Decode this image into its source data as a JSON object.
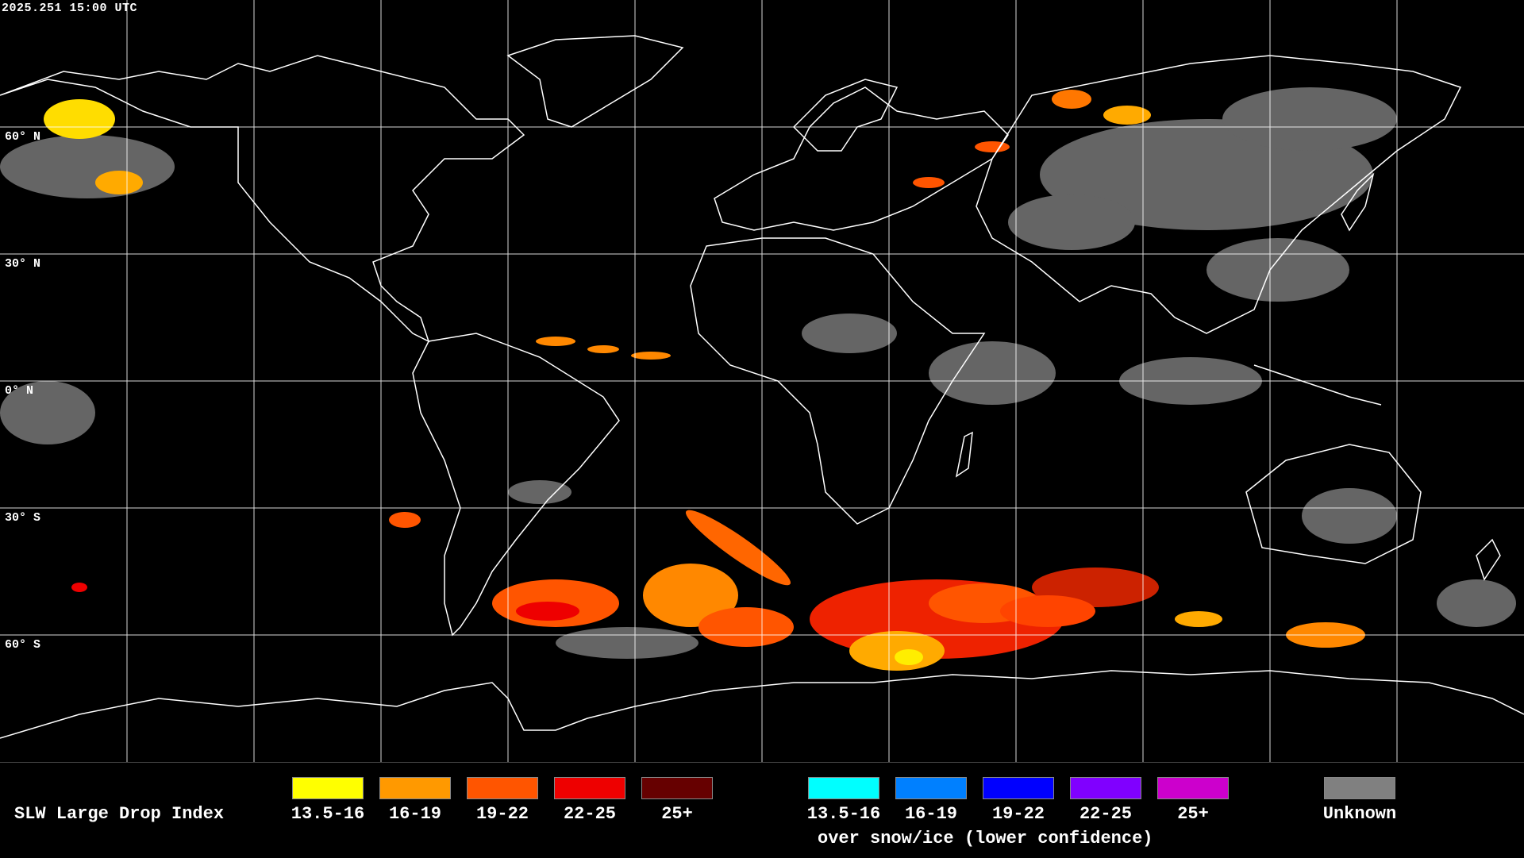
{
  "timestamp": "2025.251 15:00 UTC",
  "lat_labels": [
    "60° N",
    "30° N",
    "0° N",
    "30° S",
    "60° S"
  ],
  "legend": {
    "title": "SLW Large Drop Index",
    "main": [
      {
        "label": "13.5-16",
        "color": "#ffff00"
      },
      {
        "label": "16-19",
        "color": "#ff9900"
      },
      {
        "label": "19-22",
        "color": "#ff5500"
      },
      {
        "label": "22-25",
        "color": "#ee0000"
      },
      {
        "label": "25+",
        "color": "#660000"
      }
    ],
    "snow": [
      {
        "label": "13.5-16",
        "color": "#00ffff"
      },
      {
        "label": "16-19",
        "color": "#0080ff"
      },
      {
        "label": "19-22",
        "color": "#0000ff"
      },
      {
        "label": "22-25",
        "color": "#8000ff"
      },
      {
        "label": "25+",
        "color": "#cc00cc"
      }
    ],
    "snow_note": "over snow/ice (lower confidence)",
    "unknown": {
      "label": "Unknown",
      "color": "#808080"
    }
  }
}
